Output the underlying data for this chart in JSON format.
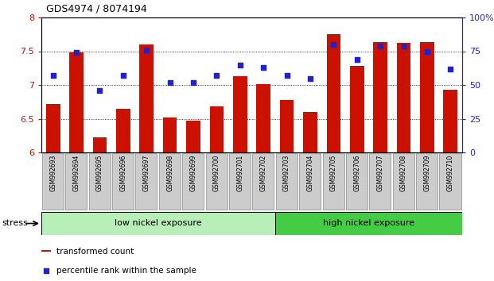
{
  "title": "GDS4974 / 8074194",
  "samples": [
    "GSM992693",
    "GSM992694",
    "GSM992695",
    "GSM992696",
    "GSM992697",
    "GSM992698",
    "GSM992699",
    "GSM992700",
    "GSM992701",
    "GSM992702",
    "GSM992703",
    "GSM992704",
    "GSM992705",
    "GSM992706",
    "GSM992707",
    "GSM992708",
    "GSM992709",
    "GSM992710"
  ],
  "bar_values": [
    6.72,
    7.48,
    6.22,
    6.65,
    7.6,
    6.52,
    6.47,
    6.68,
    7.13,
    7.01,
    6.78,
    6.6,
    7.75,
    7.28,
    7.63,
    7.62,
    7.63,
    6.93
  ],
  "scatter_pct": [
    57,
    74,
    46,
    57,
    76,
    52,
    52,
    57,
    65,
    63,
    57,
    55,
    80,
    69,
    79,
    79,
    75,
    62
  ],
  "ylim_left": [
    6.0,
    8.0
  ],
  "ylim_right": [
    0,
    100
  ],
  "yticks_left": [
    6.0,
    6.5,
    7.0,
    7.5,
    8.0
  ],
  "yticks_right": [
    0,
    25,
    50,
    75,
    100
  ],
  "bar_color": "#cc1100",
  "scatter_color": "#2222cc",
  "group1_n": 10,
  "group1_label": "low nickel exposure",
  "group2_label": "high nickel exposure",
  "group1_color": "#b8eeb8",
  "group2_color": "#44cc44",
  "stress_label": "stress",
  "legend_bar_label": "transformed count",
  "legend_scatter_label": "percentile rank within the sample",
  "xtick_box_color": "#cccccc",
  "xtick_box_edge": "#888888"
}
